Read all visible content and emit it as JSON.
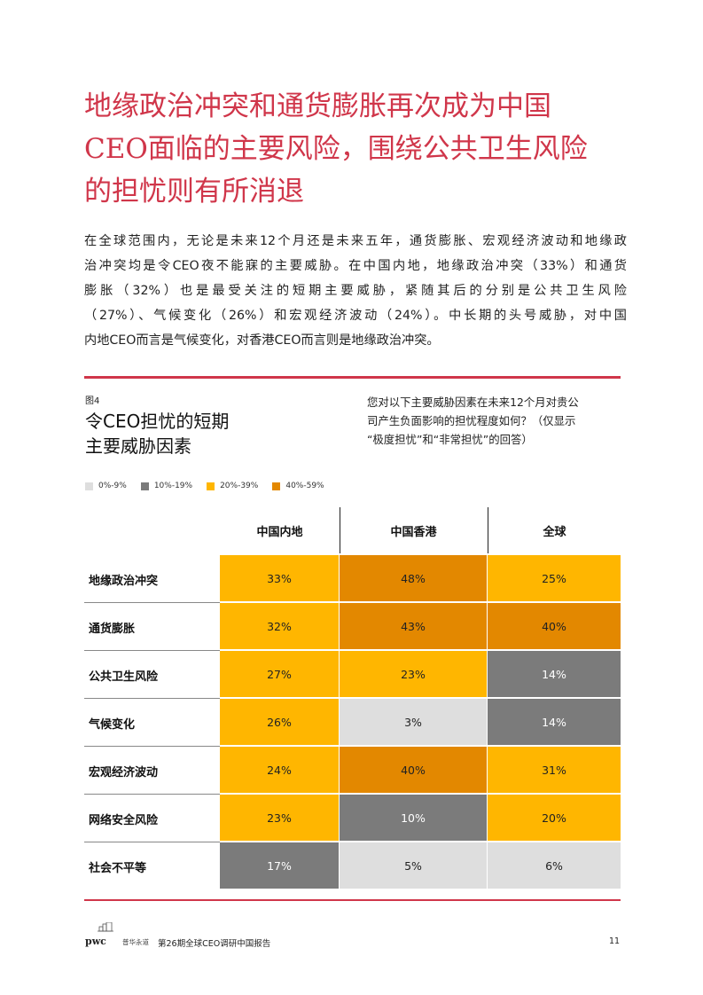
{
  "page": {
    "title_lines": [
      "地缘政治冲突和通货膨胀再次成为中国",
      "CEO面临的主要风险，围绕公共卫生风险",
      "的担忧则有所消退"
    ],
    "body_lines": [
      "在全球范围内，无论是未来12个月还是未来五年，通货膨胀、宏观经济波动和地缘政",
      "治冲突均是令CEO夜不能寐的主要威胁。在中国内地，地缘政治冲突（33%）和通货",
      "膨胀（32%）也是最受关注的短期主要威胁，紧随其后的分别是公共卫生风险",
      "（27%）、气候变化（26%）和宏观经济波动（24%）。中长期的头号威胁，对中国",
      "内地CEO而言是气候变化，对香港CEO而言则是地缘政治冲突。"
    ]
  },
  "figure": {
    "label": "图4",
    "title_lines": [
      "令CEO担忧的短期",
      "主要威胁因素"
    ],
    "question_lines": [
      "您对以下主要威胁因素在未来12个月对贵公",
      "司产生负面影响的担忧程度如何？（仅显示",
      "“极度担忧”和“非常担忧”的回答）"
    ],
    "legend": [
      {
        "label": "0%-9%",
        "color": "#dedede"
      },
      {
        "label": "10%-19%",
        "color": "#7b7b7b"
      },
      {
        "label": "20%-39%",
        "color": "#ffb600"
      },
      {
        "label": "40%-59%",
        "color": "#e38800"
      }
    ]
  },
  "chart_data": {
    "type": "table",
    "columns": [
      "中国内地",
      "中国香港",
      "全球"
    ],
    "rows": [
      {
        "label": "地缘政治冲突",
        "values": [
          "33%",
          "48%",
          "25%"
        ]
      },
      {
        "label": "通货膨胀",
        "values": [
          "32%",
          "43%",
          "40%"
        ]
      },
      {
        "label": "公共卫生风险",
        "values": [
          "27%",
          "23%",
          "14%"
        ]
      },
      {
        "label": "气候变化",
        "values": [
          "26%",
          "3%",
          "14%"
        ]
      },
      {
        "label": "宏观经济波动",
        "values": [
          "24%",
          "40%",
          "31%"
        ]
      },
      {
        "label": "网络安全风险",
        "values": [
          "23%",
          "10%",
          "20%"
        ]
      },
      {
        "label": "社会不平等",
        "values": [
          "17%",
          "5%",
          "6%"
        ]
      }
    ]
  },
  "footer": {
    "logo_text": "pwc",
    "slogan": "普华永道",
    "report_name": "第26期全球CEO调研中国报告",
    "page_number": "11"
  }
}
